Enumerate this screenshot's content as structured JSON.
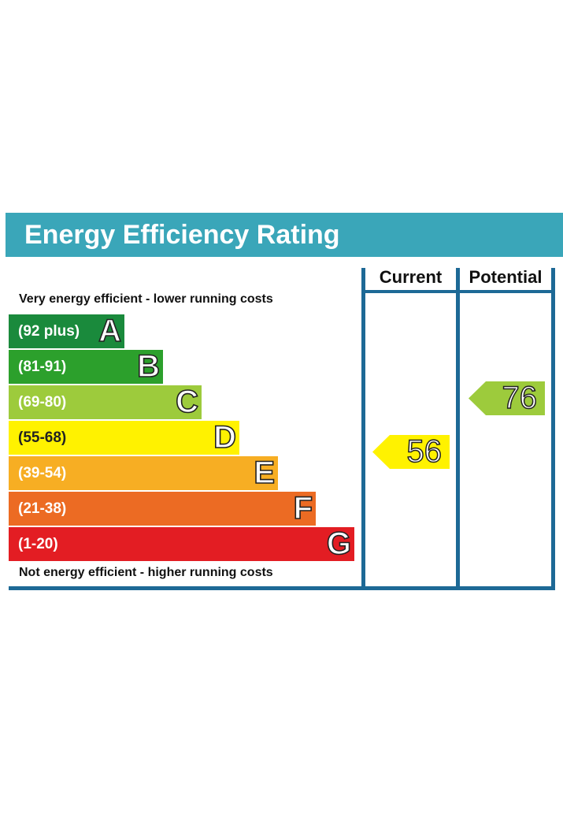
{
  "chart_data": {
    "type": "bar",
    "title": "Energy Efficiency Rating",
    "top_caption": "Very energy efficient - lower running costs",
    "bottom_caption": "Not energy efficient - higher running costs",
    "columns": [
      "Current",
      "Potential"
    ],
    "bands": [
      {
        "letter": "A",
        "range": "(92 plus)",
        "color": "#1a8a3c",
        "min": 92,
        "max": 100
      },
      {
        "letter": "B",
        "range": "(81-91)",
        "color": "#2ca02c",
        "min": 81,
        "max": 91
      },
      {
        "letter": "C",
        "range": "(69-80)",
        "color": "#9dcb3c",
        "min": 69,
        "max": 80
      },
      {
        "letter": "D",
        "range": "(55-68)",
        "color": "#fff200",
        "min": 55,
        "max": 68
      },
      {
        "letter": "E",
        "range": "(39-54)",
        "color": "#f7ae23",
        "min": 39,
        "max": 54
      },
      {
        "letter": "F",
        "range": "(21-38)",
        "color": "#ec6b23",
        "min": 21,
        "max": 38
      },
      {
        "letter": "G",
        "range": "(1-20)",
        "color": "#e31d23",
        "min": 1,
        "max": 20
      }
    ],
    "current": {
      "value": 56,
      "band": "D",
      "color": "#fff200"
    },
    "potential": {
      "value": 76,
      "band": "C",
      "color": "#9dcb3c"
    }
  }
}
